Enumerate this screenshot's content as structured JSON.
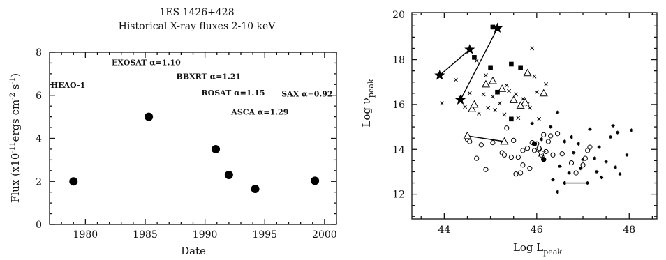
{
  "chart_data": [
    {
      "type": "scatter",
      "title": "1ES 1426+428",
      "subtitle": "Historical X-ray fluxes 2-10 keV",
      "xlabel": "Date",
      "ylabel": "Flux (x10^-11 ergs cm^-2 s^-1)",
      "ylabel_parts": {
        "main": "Flux (x10",
        "exp1": "-11",
        "unit": "ergs cm",
        "exp2": "-2",
        "s": " s",
        "exp3": "-1",
        "close": ")"
      },
      "xlim": [
        1977,
        2001
      ],
      "ylim": [
        0,
        8
      ],
      "xticks": [
        "1980",
        "1985",
        "1990",
        "1995",
        "2000"
      ],
      "yticks": [
        "0",
        "2",
        "4",
        "6",
        "8"
      ],
      "points": [
        {
          "x": 1979.0,
          "y": 2.0
        },
        {
          "x": 1985.3,
          "y": 5.0
        },
        {
          "x": 1990.9,
          "y": 3.5
        },
        {
          "x": 1992.0,
          "y": 2.3
        },
        {
          "x": 1994.2,
          "y": 1.65
        },
        {
          "x": 1999.2,
          "y": 2.03
        }
      ],
      "annotations": [
        {
          "text": "HEAO-1",
          "x": 1977.1,
          "y": 6.35
        },
        {
          "text": "EXOSAT  α=1.10",
          "x": 1982.2,
          "y": 7.4
        },
        {
          "text": "BBXRT  α=1.21",
          "x": 1987.6,
          "y": 6.75
        },
        {
          "text": "ROSAT α=1.15",
          "x": 1989.7,
          "y": 6.0
        },
        {
          "text": "SAX α=0.92",
          "x": 1996.4,
          "y": 5.95
        },
        {
          "text": "ASCA  α=1.29",
          "x": 1992.2,
          "y": 5.1
        }
      ],
      "grid": false,
      "legend": "none"
    },
    {
      "type": "scatter",
      "title": "",
      "xlabel": "Log L_peak",
      "ylabel": "Log ν_peak",
      "xlabel_parts": {
        "main": "Log L",
        "sub": "peak"
      },
      "ylabel_parts": {
        "main": "Log ν",
        "sub": "peak"
      },
      "xlim": [
        43.3,
        48.6
      ],
      "ylim": [
        10.9,
        20.1
      ],
      "xticks": [
        "44",
        "46",
        "48"
      ],
      "yticks": [
        "12",
        "14",
        "16",
        "18",
        "20"
      ],
      "grid": false,
      "legend": "none",
      "series": [
        {
          "marker": "star",
          "points": [
            [
              43.9,
              17.3
            ],
            [
              44.55,
              18.45
            ],
            [
              44.35,
              16.2
            ],
            [
              45.15,
              19.4
            ]
          ],
          "links": [
            [
              0,
              1
            ],
            [
              2,
              3
            ]
          ]
        },
        {
          "marker": "square",
          "points": [
            [
              44.65,
              18.1
            ],
            [
              45.05,
              19.45
            ],
            [
              45.0,
              17.65
            ],
            [
              45.45,
              17.8
            ],
            [
              45.65,
              17.65
            ],
            [
              45.15,
              16.55
            ],
            [
              45.45,
              15.35
            ]
          ]
        },
        {
          "marker": "triangle",
          "points": [
            [
              44.5,
              14.6
            ],
            [
              45.3,
              14.35
            ],
            [
              44.6,
              15.8
            ],
            [
              44.65,
              16.0
            ],
            [
              44.9,
              16.9
            ],
            [
              45.05,
              17.05
            ],
            [
              45.25,
              16.7
            ],
            [
              45.5,
              16.2
            ],
            [
              45.65,
              15.95
            ],
            [
              45.75,
              16.1
            ],
            [
              45.8,
              17.4
            ],
            [
              46.15,
              16.5
            ]
          ],
          "links": [
            [
              0,
              1
            ]
          ]
        },
        {
          "marker": "x",
          "points": [
            [
              43.95,
              16.05
            ],
            [
              44.25,
              17.1
            ],
            [
              44.35,
              16.3
            ],
            [
              44.45,
              15.9
            ],
            [
              44.55,
              16.5
            ],
            [
              44.7,
              17.95
            ],
            [
              44.75,
              15.6
            ],
            [
              44.85,
              16.45
            ],
            [
              44.95,
              15.85
            ],
            [
              45.05,
              16.35
            ],
            [
              45.1,
              15.75
            ],
            [
              45.2,
              16.05
            ],
            [
              45.3,
              15.55
            ],
            [
              45.35,
              16.85
            ],
            [
              45.4,
              16.6
            ],
            [
              45.55,
              16.45
            ],
            [
              45.6,
              15.4
            ],
            [
              45.7,
              16.25
            ],
            [
              45.85,
              15.85
            ],
            [
              45.95,
              17.25
            ],
            [
              46.0,
              16.55
            ],
            [
              46.05,
              15.35
            ],
            [
              45.9,
              18.5
            ],
            [
              46.2,
              16.9
            ],
            [
              44.9,
              17.3
            ],
            [
              45.8,
              16.0
            ]
          ]
        },
        {
          "marker": "asterisk",
          "points": [
            [
              46.6,
              12.5
            ],
            [
              47.1,
              12.5
            ],
            [
              45.9,
              15.15
            ],
            [
              46.1,
              14.45
            ],
            [
              46.3,
              15.0
            ],
            [
              46.45,
              15.65
            ],
            [
              46.6,
              14.35
            ],
            [
              46.75,
              14.55
            ],
            [
              46.8,
              13.85
            ],
            [
              46.9,
              14.25
            ],
            [
              47.0,
              13.55
            ],
            [
              47.1,
              14.0
            ],
            [
              47.15,
              14.9
            ],
            [
              47.25,
              13.6
            ],
            [
              47.3,
              13.0
            ],
            [
              47.35,
              14.1
            ],
            [
              47.5,
              13.45
            ],
            [
              47.6,
              14.55
            ],
            [
              47.7,
              13.2
            ],
            [
              47.75,
              14.75
            ],
            [
              47.8,
              12.9
            ],
            [
              47.95,
              13.75
            ],
            [
              48.05,
              14.85
            ],
            [
              46.7,
              12.95
            ],
            [
              46.95,
              13.15
            ],
            [
              46.35,
              12.65
            ],
            [
              46.45,
              12.1
            ],
            [
              47.4,
              12.75
            ],
            [
              46.5,
              13.25
            ],
            [
              47.65,
              15.05
            ]
          ],
          "links": [
            [
              0,
              1
            ]
          ]
        },
        {
          "marker": "circle",
          "points": [
            [
              44.5,
              14.45
            ],
            [
              44.55,
              14.35
            ],
            [
              44.7,
              13.6
            ],
            [
              44.8,
              14.2
            ],
            [
              44.9,
              13.1
            ],
            [
              45.05,
              14.3
            ],
            [
              45.25,
              13.85
            ],
            [
              45.3,
              13.75
            ],
            [
              45.35,
              14.95
            ],
            [
              45.45,
              13.65
            ],
            [
              45.55,
              12.9
            ],
            [
              45.6,
              13.65
            ],
            [
              45.65,
              12.95
            ],
            [
              45.7,
              13.95
            ],
            [
              45.8,
              14.05
            ],
            [
              45.85,
              13.15
            ],
            [
              45.9,
              14.3
            ],
            [
              45.95,
              13.95
            ],
            [
              46.0,
              14.25
            ],
            [
              46.05,
              14.05
            ],
            [
              46.1,
              13.75
            ],
            [
              46.15,
              13.55
            ],
            [
              46.2,
              13.9
            ],
            [
              46.25,
              14.35
            ],
            [
              46.3,
              14.6
            ],
            [
              46.35,
              13.75
            ],
            [
              46.45,
              14.7
            ],
            [
              46.55,
              13.8
            ],
            [
              46.75,
              13.4
            ],
            [
              46.85,
              12.95
            ],
            [
              47.0,
              13.3
            ],
            [
              47.05,
              13.6
            ],
            [
              47.1,
              13.95
            ],
            [
              47.15,
              14.1
            ],
            [
              46.15,
              14.65
            ],
            [
              45.7,
              13.3
            ],
            [
              45.5,
              14.4
            ]
          ]
        },
        {
          "marker": "filled-circle",
          "points": [
            [
              46.15,
              13.55
            ],
            [
              45.95,
              14.25
            ]
          ]
        },
        {
          "marker": "open-star",
          "points": [
            [
              46.1,
              13.85
            ]
          ]
        }
      ]
    }
  ]
}
